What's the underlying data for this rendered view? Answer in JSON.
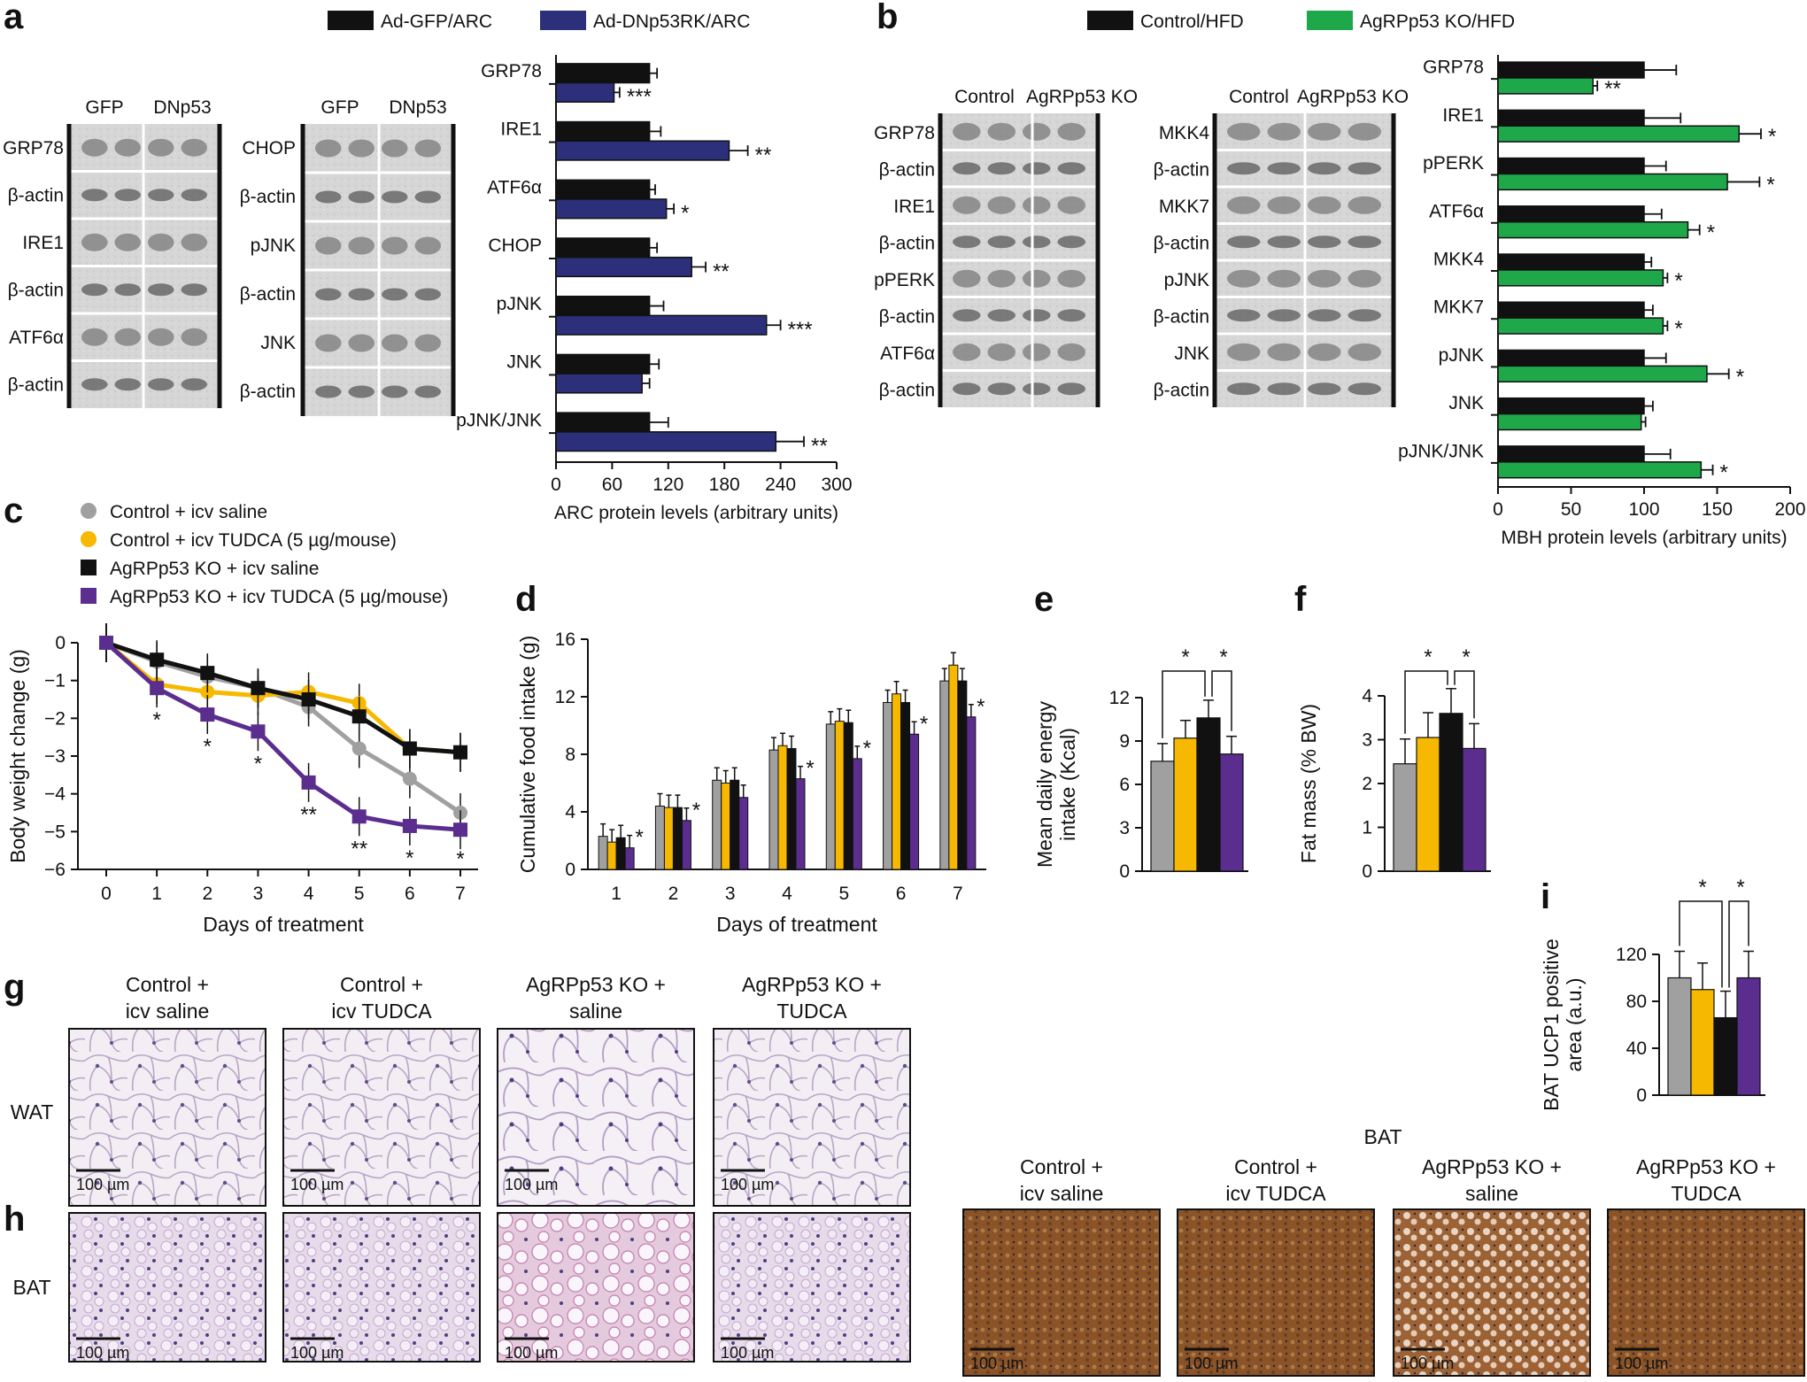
{
  "panels": {
    "a": "a",
    "b": "b",
    "c": "c",
    "d": "d",
    "e": "e",
    "f": "f",
    "g": "g",
    "h": "h",
    "i": "i"
  },
  "colors": {
    "black": "#111111",
    "navy": "#2c2f7a",
    "green": "#1ea84a",
    "grey": "#a0a0a0",
    "yellow": "#f6b800",
    "purple": "#5b2d8e"
  },
  "blots_a": {
    "left_cols": [
      "GFP",
      "DNp53"
    ],
    "right_cols": [
      "GFP",
      "DNp53"
    ],
    "left_rows": [
      "GRP78",
      "β-actin",
      "IRE1",
      "β-actin",
      "ATF6α",
      "β-actin"
    ],
    "right_rows": [
      "CHOP",
      "β-actin",
      "pJNK",
      "β-actin",
      "JNK",
      "β-actin"
    ]
  },
  "blots_b": {
    "left_cols": [
      "Control",
      "AgRPp53 KO"
    ],
    "right_cols": [
      "Control",
      "AgRPp53 KO"
    ],
    "left_rows": [
      "GRP78",
      "β-actin",
      "IRE1",
      "β-actin",
      "pPERK",
      "β-actin",
      "ATF6α",
      "β-actin"
    ],
    "right_rows": [
      "MKK4",
      "β-actin",
      "MKK7",
      "β-actin",
      "pJNK",
      "β-actin",
      "JNK",
      "β-actin"
    ]
  },
  "chart_data": [
    {
      "id": "a",
      "type": "bar",
      "orientation": "horizontal",
      "legend": [
        "Ad-GFP/ARC",
        "Ad-DNp53RK/ARC"
      ],
      "categories": [
        "GRP78",
        "IRE1",
        "ATF6α",
        "CHOP",
        "pJNK",
        "JNK",
        "pJNK/JNK"
      ],
      "series": [
        {
          "name": "Ad-GFP/ARC",
          "values": [
            100,
            100,
            100,
            100,
            100,
            100,
            100
          ],
          "errors": [
            8,
            12,
            6,
            8,
            15,
            10,
            20
          ]
        },
        {
          "name": "Ad-DNp53RK/ARC",
          "values": [
            62,
            185,
            118,
            145,
            225,
            92,
            235
          ],
          "errors": [
            6,
            20,
            8,
            15,
            15,
            8,
            30
          ]
        }
      ],
      "stars": [
        "***",
        "**",
        "*",
        "**",
        "***",
        "",
        "**"
      ],
      "xlabel": "ARC protein levels (arbitrary units)",
      "xticks": [
        "0",
        "60",
        "120",
        "180",
        "240",
        "300"
      ],
      "xlim": [
        0,
        300
      ]
    },
    {
      "id": "b",
      "type": "bar",
      "orientation": "horizontal",
      "legend": [
        "Control/HFD",
        "AgRPp53 KO/HFD"
      ],
      "categories": [
        "GRP78",
        "IRE1",
        "pPERK",
        "ATF6α",
        "MKK4",
        "MKK7",
        "pJNK",
        "JNK",
        "pJNK/JNK"
      ],
      "series": [
        {
          "name": "Control/HFD",
          "values": [
            100,
            100,
            100,
            100,
            100,
            100,
            100,
            100,
            100
          ],
          "errors": [
            22,
            25,
            15,
            12,
            5,
            6,
            15,
            6,
            18
          ]
        },
        {
          "name": "AgRPp53 KO/HFD",
          "values": [
            65,
            165,
            157,
            130,
            113,
            113,
            143,
            98,
            139
          ],
          "errors": [
            3,
            15,
            22,
            8,
            3,
            3,
            15,
            3,
            8
          ]
        }
      ],
      "stars": [
        "**",
        "*",
        "*",
        "*",
        "*",
        "*",
        "*",
        "",
        "*"
      ],
      "xlabel": "MBH protein levels (arbitrary units)",
      "xticks": [
        "0",
        "50",
        "100",
        "150",
        "200"
      ],
      "xlim": [
        0,
        200
      ]
    },
    {
      "id": "c",
      "type": "line",
      "legend": [
        "Control + icv saline",
        "Control + icv TUDCA (5 µg/mouse)",
        "AgRPp53 KO + icv saline",
        "AgRPp53 KO + icv TUDCA (5 µg/mouse)"
      ],
      "x": [
        0,
        1,
        2,
        3,
        4,
        5,
        6,
        7
      ],
      "series": [
        {
          "name": "Control + icv saline",
          "values": [
            0,
            -0.5,
            -0.9,
            -1.2,
            -1.7,
            -2.8,
            -3.6,
            -4.5
          ]
        },
        {
          "name": "Control + icv TUDCA (5 µg/mouse)",
          "values": [
            0,
            -1.1,
            -1.3,
            -1.4,
            -1.3,
            -1.6,
            -2.8,
            -2.9
          ]
        },
        {
          "name": "AgRPp53 KO + icv saline",
          "values": [
            0,
            -0.45,
            -0.8,
            -1.2,
            -1.5,
            -1.95,
            -2.8,
            -2.9
          ]
        },
        {
          "name": "AgRPp53 KO + icv TUDCA (5 µg/mouse)",
          "values": [
            0,
            -1.2,
            -1.9,
            -2.35,
            -3.7,
            -4.6,
            -4.85,
            -4.95
          ]
        }
      ],
      "stars": [
        "",
        "*",
        "*",
        "*",
        "**",
        "**",
        "*",
        "*"
      ],
      "xlabel": "Days of treatment",
      "ylabel": "Body weight change (g)",
      "yticks": [
        "0",
        "−1",
        "−2",
        "−3",
        "−4",
        "−5",
        "−6"
      ],
      "ylim": [
        -6,
        0
      ],
      "xticks": [
        "0",
        "1",
        "2",
        "3",
        "4",
        "5",
        "6",
        "7"
      ]
    },
    {
      "id": "d",
      "type": "bar",
      "categories": [
        "1",
        "2",
        "3",
        "4",
        "5",
        "6",
        "7"
      ],
      "series": [
        {
          "name": "Control + icv saline",
          "values": [
            2.3,
            4.4,
            6.2,
            8.3,
            10.1,
            11.6,
            13.1
          ]
        },
        {
          "name": "Control + icv TUDCA",
          "values": [
            1.9,
            4.3,
            6.0,
            8.6,
            10.3,
            12.2,
            14.2
          ]
        },
        {
          "name": "AgRPp53 KO + icv saline",
          "values": [
            2.2,
            4.3,
            6.2,
            8.4,
            10.2,
            11.6,
            13.1
          ]
        },
        {
          "name": "AgRPp53 KO + icv TUDCA",
          "values": [
            1.5,
            3.4,
            5.0,
            6.3,
            7.7,
            9.4,
            10.6
          ]
        }
      ],
      "stars": [
        "*",
        "*",
        "",
        "*",
        "*",
        "*",
        "*"
      ],
      "xlabel": "Days of treatment",
      "ylabel": "Cumulative food intake (g)",
      "yticks": [
        "0",
        "4",
        "8",
        "12",
        "16"
      ],
      "ylim": [
        0,
        16
      ]
    },
    {
      "id": "e",
      "type": "bar",
      "values": [
        7.6,
        9.2,
        10.6,
        8.1
      ],
      "ylabel_line1": "Mean daily energy",
      "ylabel_line2": "intake (Kcal)",
      "yticks": [
        "0",
        "3",
        "6",
        "9",
        "12"
      ],
      "ylim": [
        0,
        12
      ],
      "stars": [
        "*",
        "*"
      ]
    },
    {
      "id": "f",
      "type": "bar",
      "values": [
        2.45,
        3.05,
        3.6,
        2.8
      ],
      "ylabel": "Fat mass (% BW)",
      "yticks": [
        "0",
        "1",
        "2",
        "3",
        "4"
      ],
      "ylim": [
        0,
        4
      ],
      "stars": [
        "*",
        "*"
      ]
    },
    {
      "id": "i",
      "type": "bar",
      "values": [
        100,
        90,
        66,
        100
      ],
      "ylabel_line1": "BAT UCP1 positive",
      "ylabel_line2": "area (a.u.)",
      "yticks": [
        "0",
        "40",
        "80",
        "120"
      ],
      "ylim": [
        0,
        120
      ],
      "stars": [
        "*",
        "*"
      ]
    }
  ],
  "histology": {
    "groups_line1": [
      "Control +",
      "Control +",
      "AgRPp53 KO +",
      "AgRPp53 KO +"
    ],
    "groups_line2": [
      "icv saline",
      "icv TUDCA",
      "saline",
      "TUDCA"
    ],
    "row_wat": "WAT",
    "row_bat": "BAT",
    "ucp1_title": "BAT",
    "scale": "100 µm"
  }
}
